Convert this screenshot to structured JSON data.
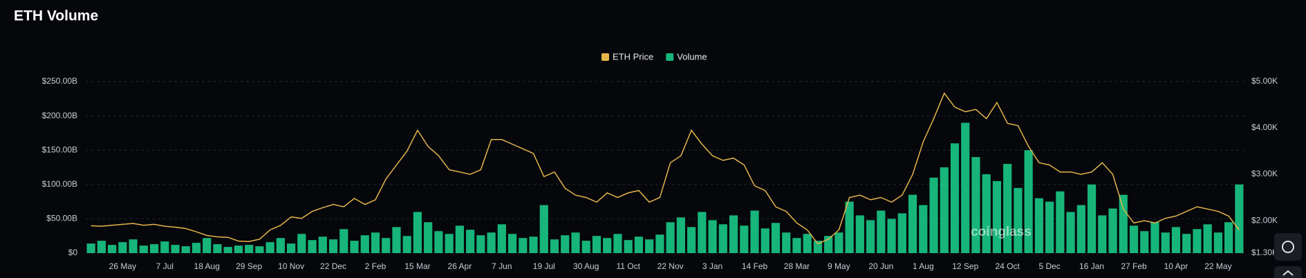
{
  "title": "ETH Volume",
  "watermark": "coinglass",
  "chart_data": {
    "type": "combo",
    "categories": [
      null,
      null,
      null,
      "26 May",
      null,
      null,
      null,
      "7 Jul",
      null,
      null,
      null,
      "18 Aug",
      null,
      null,
      null,
      "29 Sep",
      null,
      null,
      null,
      "10 Nov",
      null,
      null,
      null,
      "22 Dec",
      null,
      null,
      null,
      "2 Feb",
      null,
      null,
      null,
      "15 Mar",
      null,
      null,
      null,
      "26 Apr",
      null,
      null,
      null,
      "7 Jun",
      null,
      null,
      null,
      "19 Jul",
      null,
      null,
      null,
      "30 Aug",
      null,
      null,
      null,
      "11 Oct",
      null,
      null,
      null,
      "22 Nov",
      null,
      null,
      null,
      "3 Jan",
      null,
      null,
      null,
      "14 Feb",
      null,
      null,
      null,
      "28 Mar",
      null,
      null,
      null,
      "9 May",
      null,
      null,
      null,
      "20 Jun",
      null,
      null,
      null,
      "1 Aug",
      null,
      null,
      null,
      "12 Sep",
      null,
      null,
      null,
      "24 Oct",
      null,
      null,
      null,
      "5 Dec",
      null,
      null,
      null,
      "16 Jan",
      null,
      null,
      null,
      "27 Feb",
      null,
      null,
      null,
      "10 Apr",
      null,
      null,
      null,
      "22 May",
      null,
      null
    ],
    "series": [
      {
        "name": "ETH Price",
        "type": "line",
        "axis": "y2",
        "color": "#e6b54a",
        "values": [
          1890,
          1880,
          1900,
          1920,
          1940,
          1900,
          1920,
          1880,
          1860,
          1830,
          1760,
          1680,
          1650,
          1640,
          1560,
          1550,
          1600,
          1800,
          1900,
          2080,
          2050,
          2200,
          2280,
          2350,
          2300,
          2480,
          2350,
          2450,
          2900,
          3200,
          3500,
          3950,
          3600,
          3400,
          3100,
          3050,
          3000,
          3100,
          3750,
          3750,
          3650,
          3550,
          3450,
          2950,
          3050,
          2700,
          2550,
          2500,
          2400,
          2600,
          2500,
          2600,
          2650,
          2400,
          2500,
          3250,
          3400,
          3950,
          3650,
          3400,
          3300,
          3350,
          3200,
          2750,
          2650,
          2300,
          2200,
          1950,
          1800,
          1500,
          1600,
          1800,
          2500,
          2550,
          2450,
          2500,
          2400,
          2550,
          3000,
          3700,
          4200,
          4750,
          4450,
          4350,
          4400,
          4200,
          4550,
          4100,
          4050,
          3600,
          3250,
          3200,
          3050,
          3050,
          3000,
          3050,
          3250,
          3000,
          2250,
          1950,
          2000,
          1950,
          2050,
          2100,
          2200,
          2300,
          2250,
          2200,
          2100,
          1800
        ]
      },
      {
        "name": "Volume",
        "type": "bar",
        "color": "#17b57a",
        "values": [
          14,
          18,
          12,
          16,
          20,
          11,
          13,
          17,
          12,
          10,
          15,
          22,
          13,
          9,
          11,
          12,
          10,
          16,
          22,
          14,
          28,
          19,
          24,
          20,
          35,
          18,
          26,
          30,
          22,
          38,
          25,
          60,
          45,
          32,
          28,
          40,
          34,
          26,
          30,
          42,
          28,
          22,
          24,
          70,
          20,
          26,
          30,
          18,
          25,
          22,
          28,
          19,
          24,
          20,
          27,
          45,
          52,
          38,
          60,
          48,
          42,
          55,
          40,
          62,
          36,
          44,
          30,
          22,
          28,
          18,
          25,
          30,
          75,
          55,
          48,
          62,
          50,
          58,
          85,
          70,
          110,
          125,
          160,
          190,
          140,
          115,
          105,
          130,
          95,
          150,
          80,
          75,
          90,
          60,
          70,
          100,
          55,
          65,
          85,
          40,
          32,
          45,
          30,
          38,
          28,
          35,
          42,
          30,
          45,
          100
        ]
      }
    ],
    "ylim": [
      0,
      250
    ],
    "yticks": [
      {
        "value": 0,
        "label": "$0"
      },
      {
        "value": 50,
        "label": "$50.00B"
      },
      {
        "value": 100,
        "label": "$100.00B"
      },
      {
        "value": 150,
        "label": "$150.00B"
      },
      {
        "value": 200,
        "label": "$200.00B"
      },
      {
        "value": 250,
        "label": "$250.00B"
      }
    ],
    "y2lim": [
      1300,
      5000
    ],
    "y2ticks": [
      {
        "value": 1300,
        "label": "$1.30K"
      },
      {
        "value": 2000,
        "label": "$2.00K"
      },
      {
        "value": 3000,
        "label": "$3.00K"
      },
      {
        "value": 4000,
        "label": "$4.00K"
      },
      {
        "value": 5000,
        "label": "$5.00K"
      }
    ],
    "grid": true,
    "legend": "top"
  }
}
